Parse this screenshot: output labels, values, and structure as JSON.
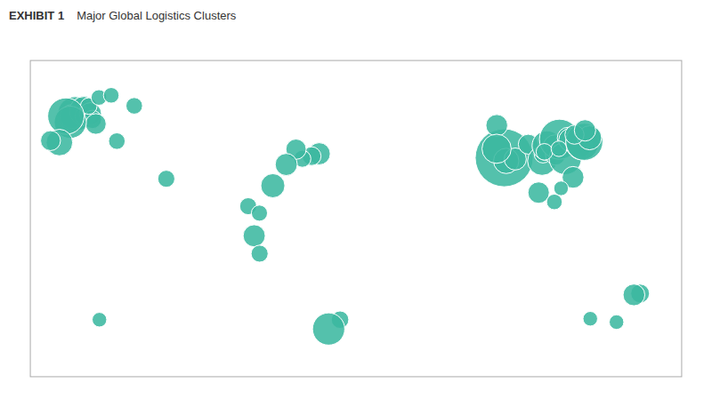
{
  "chart_data": {
    "type": "bubble",
    "title": "Major Global Logistics Clusters",
    "subtitle": "EXHIBIT 1",
    "x": [
      81.8,
      82.9,
      87.9,
      95.1,
      102.7,
      103.2,
      105.4,
      109.9,
      110.1,
      112.3,
      115.5,
      117,
      118.3,
      119.8,
      123.4,
      124.8,
      126,
      128.9,
      77.7,
      77.6,
      100.8,
      109.5,
      113.2,
      104,
      112,
      120.6,
      126.4,
      -155.1,
      -156.8,
      -150.1,
      -150,
      -146.6,
      -145.5,
      -143.6,
      -147.5,
      -141.9,
      -135.1,
      -157.7,
      -160.1,
      -163.7,
      -168.6,
      -20.3,
      -24.5,
      -29.6,
      -33.1,
      -38.5,
      -45.9,
      -56.2,
      -59.5,
      -53.3,
      -53.2,
      -8.8,
      -15.1,
      156.8,
      153.4,
      143.8,
      129.3,
      -141.6,
      -104.7,
      -132,
      -122.4
    ],
    "values": [
      34.0,
      32.7,
      33.5,
      39.7,
      32.7,
      35.5,
      39.1,
      38.6,
      35.1,
      41.8,
      33.7,
      42.3,
      41.5,
      25.8,
      39.3,
      40.0,
      40.7,
      42.4,
      47.6,
      37.8,
      19.4,
      15.5,
      21.2,
      36.5,
      37.8,
      43.7,
      45.5,
      52.4,
      51.3,
      53.6,
      51.5,
      52.5,
      50.1,
      48.2,
      55.7,
      59.3,
      60.2,
      48.9,
      51.5,
      40.4,
      41.2,
      35.7,
      34.7,
      33.6,
      37.6,
      31.2,
      22.3,
      1.3,
      13.7,
      10.8,
      -6.2,
      -33.9,
      -37.8,
      -22.9,
      -23.5,
      -34.9,
      -33.5,
      -33.9,
      25.2,
      41.0,
      55.8
    ],
    "sizes": [
      2200,
      420,
      320,
      260,
      550,
      200,
      580,
      380,
      260,
      1050,
      680,
      300,
      350,
      310,
      420,
      700,
      900,
      380,
      310,
      560,
      300,
      160,
      140,
      180,
      160,
      240,
      300,
      780,
      380,
      560,
      220,
      320,
      220,
      280,
      180,
      160,
      160,
      680,
      870,
      460,
      260,
      320,
      230,
      190,
      270,
      320,
      380,
      320,
      190,
      170,
      190,
      200,
      680,
      230,
      310,
      140,
      140,
      140,
      190,
      180,
      180
    ],
    "color": "#3cb8a0",
    "xlim": [
      -180,
      180
    ],
    "ylim": [
      -58,
      75
    ],
    "tick_labels": false,
    "grid": false
  }
}
